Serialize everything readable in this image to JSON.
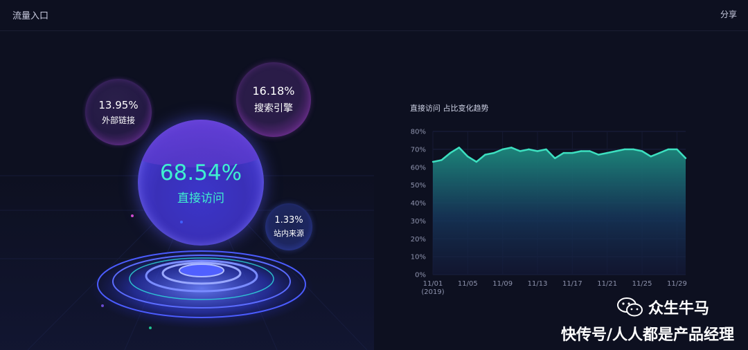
{
  "header": {
    "title": "流量入口",
    "share_label": "分享"
  },
  "bubbles": {
    "direct": {
      "percent": "68.54%",
      "label": "直接访问"
    },
    "search": {
      "percent": "16.18%",
      "label": "搜索引擎"
    },
    "external": {
      "percent": "13.95%",
      "label": "外部链接"
    },
    "site": {
      "percent": "1.33%",
      "label": "站内来源"
    }
  },
  "colors": {
    "background": "#0d1020",
    "accent_teal": "#3ff0d0",
    "line": "#3de0c0"
  },
  "chart_data": {
    "type": "area",
    "title": "直接访问 占比变化趋势",
    "x": [
      "11/01",
      "11/02",
      "11/03",
      "11/04",
      "11/05",
      "11/06",
      "11/07",
      "11/08",
      "11/09",
      "11/10",
      "11/11",
      "11/12",
      "11/13",
      "11/14",
      "11/15",
      "11/16",
      "11/17",
      "11/18",
      "11/19",
      "11/20",
      "11/21",
      "11/22",
      "11/23",
      "11/24",
      "11/25",
      "11/26",
      "11/27",
      "11/28",
      "11/29",
      "11/30"
    ],
    "values": [
      63,
      64,
      68,
      71,
      66,
      63,
      67,
      68,
      70,
      71,
      69,
      70,
      69,
      70,
      65,
      68,
      68,
      69,
      69,
      67,
      68,
      69,
      70,
      70,
      69,
      66,
      68,
      70,
      70,
      65
    ],
    "x_tick_labels": [
      "11/01",
      "11/05",
      "11/09",
      "11/13",
      "11/17",
      "11/21",
      "11/25",
      "11/29"
    ],
    "x_tick_indices": [
      0,
      4,
      8,
      12,
      16,
      20,
      24,
      28
    ],
    "x_sublabel": "(2019)",
    "y_ticks": [
      "0%",
      "10%",
      "20%",
      "30%",
      "40%",
      "50%",
      "60%",
      "70%",
      "80%"
    ],
    "ylim": [
      0,
      80
    ]
  },
  "watermark": {
    "line1": "众生牛马",
    "line2": "快传号/人人都是产品经理",
    "icon": "wechat-icon"
  }
}
